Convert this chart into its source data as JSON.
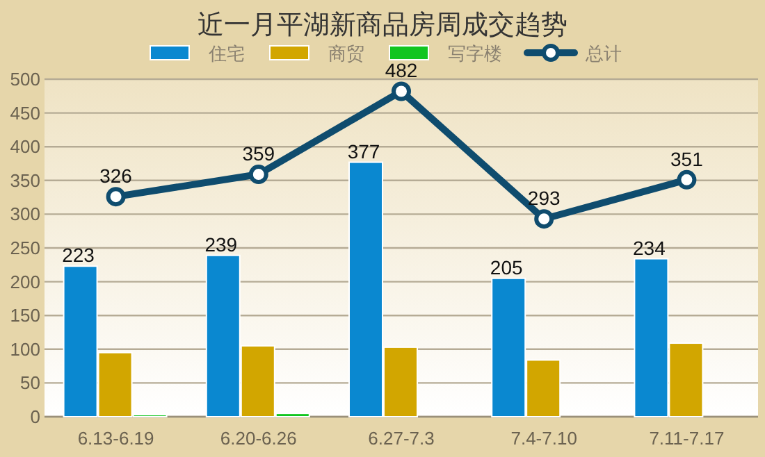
{
  "chart_data": {
    "type": "bar",
    "title": "近一月平湖新商品房周成交趋势",
    "categories": [
      "6.13-6.19",
      "6.20-6.26",
      "6.27-7.3",
      "7.4-7.10",
      "7.11-7.17"
    ],
    "series": [
      {
        "name": "住宅",
        "color": "#0a88d0",
        "values": [
          223,
          239,
          377,
          205,
          234
        ],
        "value_labels": [
          "223",
          "239",
          "377",
          "205",
          "234"
        ]
      },
      {
        "name": "商贸",
        "color": "#d2a600",
        "values": [
          95,
          105,
          103,
          84,
          109
        ]
      },
      {
        "name": "写字楼",
        "color": "#12c520",
        "values": [
          3,
          5,
          0,
          0,
          0
        ]
      },
      {
        "name": "总计",
        "type": "line",
        "color": "#0f4c6e",
        "marker": "circle",
        "values": [
          326,
          359,
          482,
          293,
          351
        ],
        "value_labels": [
          "326",
          "359",
          "482",
          "293",
          "351"
        ]
      }
    ],
    "ylim": [
      0,
      500
    ],
    "yticks": [
      0,
      50,
      100,
      150,
      200,
      250,
      300,
      350,
      400,
      450,
      500
    ],
    "grid": "y",
    "legend": "top"
  }
}
